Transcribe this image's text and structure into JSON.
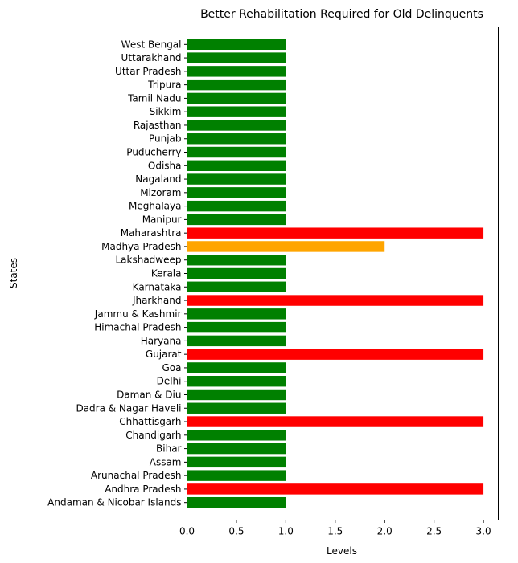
{
  "chart_data": {
    "type": "bar",
    "orientation": "horizontal",
    "title": "Better Rehabilitation Required for Old Delinquents",
    "xlabel": "Levels",
    "ylabel": "States",
    "xlim": [
      0,
      3.15
    ],
    "xticks": [
      "0.0",
      "0.5",
      "1.0",
      "1.5",
      "2.0",
      "2.5",
      "3.0"
    ],
    "grid": false,
    "colors": {
      "level_1": "#008000",
      "level_2": "#ffa500",
      "level_3": "#ff0000"
    },
    "categories": [
      "Andaman & Nicobar Islands",
      "Andhra Pradesh",
      "Arunachal Pradesh",
      "Assam",
      "Bihar",
      "Chandigarh",
      "Chhattisgarh",
      "Dadra & Nagar Haveli",
      "Daman & Diu",
      "Delhi",
      "Goa",
      "Gujarat",
      "Haryana",
      "Himachal Pradesh",
      "Jammu & Kashmir",
      "Jharkhand",
      "Karnataka",
      "Kerala",
      "Lakshadweep",
      "Madhya Pradesh",
      "Maharashtra",
      "Manipur",
      "Meghalaya",
      "Mizoram",
      "Nagaland",
      "Odisha",
      "Puducherry",
      "Punjab",
      "Rajasthan",
      "Sikkim",
      "Tamil Nadu",
      "Tripura",
      "Uttar Pradesh",
      "Uttarakhand",
      "West Bengal"
    ],
    "values": [
      1,
      3,
      1,
      1,
      1,
      1,
      3,
      1,
      1,
      1,
      1,
      3,
      1,
      1,
      1,
      3,
      1,
      1,
      1,
      2,
      3,
      1,
      1,
      1,
      1,
      1,
      1,
      1,
      1,
      1,
      1,
      1,
      1,
      1,
      1
    ]
  }
}
